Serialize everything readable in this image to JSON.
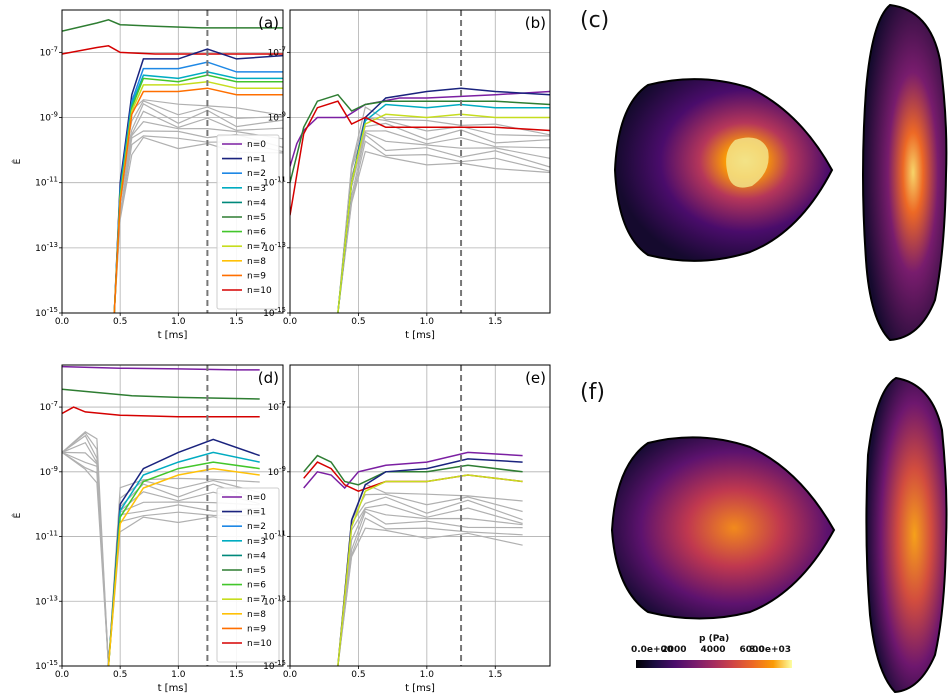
{
  "panels": {
    "c": "(c)",
    "f": "(f)"
  },
  "colorbar": {
    "title": "p (Pa)",
    "ticks": [
      "0.0e+00",
      "2000",
      "4000",
      "6000",
      "8.0e+03"
    ],
    "colors": [
      "#000004",
      "#1b0c41",
      "#4a0c6b",
      "#781c6d",
      "#a52c60",
      "#cf4446",
      "#ed6925",
      "#fb9b06",
      "#f7d13d",
      "#fcffa4"
    ]
  },
  "series_colors": {
    "n=0": "#7b1fa2",
    "n=1": "#1a237e",
    "n=2": "#1e88e5",
    "n=3": "#00acc1",
    "n=4": "#00897b",
    "n=5": "#2e7d32",
    "n=6": "#43c62b",
    "n=7": "#c6dd1e",
    "n=8": "#ffc107",
    "n=9": "#ff6f00",
    "n=10": "#d50000",
    "higher-n": "#b0b0b0"
  },
  "chart_data": [
    {
      "type": "line",
      "panel_label": "(a)",
      "xlabel": "t [ms]",
      "ylabel": "Ê",
      "xlim": [
        0,
        1.9
      ],
      "ylim_log10": [
        -15,
        -5.7
      ],
      "yscale": "log",
      "xticks": [
        "0.0",
        "0.5",
        "1.0",
        "1.5"
      ],
      "yticks": [
        "10^-15",
        "10^-13",
        "10^-11",
        "10^-9",
        "10^-7"
      ],
      "vline_x": 1.25,
      "grid": true,
      "legend": "lower-right",
      "legend_entries": [
        "n=0",
        "n=1",
        "n=2",
        "n=3",
        "n=4",
        "n=5",
        "n=6",
        "n=7",
        "n=8",
        "n=9",
        "n=10"
      ],
      "series": [
        {
          "name": "n=5",
          "x": [
            0,
            0.3,
            0.4,
            0.5,
            0.8,
            1.2,
            1.5,
            1.9
          ],
          "log10_y": [
            -6.35,
            -6.1,
            -6.0,
            -6.15,
            -6.2,
            -6.25,
            -6.25,
            -6.25
          ]
        },
        {
          "name": "n=10",
          "x": [
            0,
            0.3,
            0.4,
            0.5,
            0.8,
            1.2,
            1.5,
            1.9
          ],
          "log10_y": [
            -7.05,
            -6.85,
            -6.8,
            -7.0,
            -7.05,
            -7.05,
            -7.05,
            -7.05
          ]
        },
        {
          "name": "n=1",
          "x": [
            0.45,
            0.5,
            0.6,
            0.7,
            1.0,
            1.25,
            1.5,
            1.9
          ],
          "log10_y": [
            -15,
            -11,
            -8.3,
            -7.2,
            -7.2,
            -6.9,
            -7.2,
            -7.1
          ]
        },
        {
          "name": "n=2",
          "x": [
            0.45,
            0.5,
            0.6,
            0.7,
            1.0,
            1.25,
            1.5,
            1.9
          ],
          "log10_y": [
            -15,
            -11.2,
            -8.5,
            -7.5,
            -7.5,
            -7.3,
            -7.6,
            -7.6
          ]
        },
        {
          "name": "n=3",
          "x": [
            0.45,
            0.5,
            0.6,
            0.7,
            1.0,
            1.25,
            1.5,
            1.9
          ],
          "log10_y": [
            -15,
            -11.3,
            -8.6,
            -7.7,
            -7.8,
            -7.6,
            -7.8,
            -7.8
          ]
        },
        {
          "name": "n=6",
          "x": [
            0.45,
            0.5,
            0.6,
            0.7,
            1.0,
            1.25,
            1.5,
            1.9
          ],
          "log10_y": [
            -15,
            -11.4,
            -8.7,
            -7.8,
            -7.9,
            -7.7,
            -7.9,
            -7.9
          ]
        },
        {
          "name": "n=7",
          "x": [
            0.45,
            0.5,
            0.6,
            0.7,
            1.0,
            1.25,
            1.5,
            1.9
          ],
          "log10_y": [
            -15,
            -11.5,
            -8.8,
            -8.0,
            -8.0,
            -7.9,
            -8.1,
            -8.1
          ]
        },
        {
          "name": "n=9",
          "x": [
            0.45,
            0.5,
            0.6,
            0.7,
            1.0,
            1.25,
            1.5,
            1.9
          ],
          "log10_y": [
            -15,
            -11.6,
            -8.9,
            -8.2,
            -8.2,
            -8.1,
            -8.3,
            -8.3
          ]
        },
        {
          "name": "higher-n",
          "x": [
            0.45,
            0.5,
            0.6,
            0.7,
            1.0,
            1.25,
            1.5,
            1.9
          ],
          "log10_y": [
            -15,
            -11.5,
            -9.5,
            -9.0,
            -9.3,
            -9.2,
            -9.4,
            -9.5
          ]
        }
      ]
    },
    {
      "type": "line",
      "panel_label": "(b)",
      "xlabel": "t [ms]",
      "ylabel": "",
      "xlim": [
        0,
        1.9
      ],
      "ylim_log10": [
        -15,
        -5.7
      ],
      "yscale": "log",
      "xticks": [
        "0.0",
        "0.5",
        "1.0",
        "1.5"
      ],
      "yticks": [
        "10^-15",
        "10^-13",
        "10^-11",
        "10^-9",
        "10^-7"
      ],
      "vline_x": 1.25,
      "grid": true,
      "series": [
        {
          "name": "n=0",
          "x": [
            0,
            0.05,
            0.1,
            0.2,
            0.4,
            0.55,
            0.8,
            1.0,
            1.5,
            1.9
          ],
          "log10_y": [
            -10.5,
            -9.8,
            -9.4,
            -9.0,
            -9.0,
            -8.6,
            -8.4,
            -8.4,
            -8.3,
            -8.2
          ]
        },
        {
          "name": "n=1",
          "x": [
            0.35,
            0.45,
            0.55,
            0.7,
            1.0,
            1.25,
            1.5,
            1.9
          ],
          "log10_y": [
            -15,
            -11,
            -9.0,
            -8.4,
            -8.2,
            -8.1,
            -8.2,
            -8.3
          ]
        },
        {
          "name": "n=5",
          "x": [
            0,
            0.1,
            0.2,
            0.35,
            0.45,
            0.55,
            0.7,
            1.0,
            1.5,
            1.9
          ],
          "log10_y": [
            -11,
            -9.3,
            -8.5,
            -8.3,
            -8.8,
            -8.6,
            -8.5,
            -8.5,
            -8.5,
            -8.6
          ]
        },
        {
          "name": "n=3",
          "x": [
            0.35,
            0.45,
            0.55,
            0.7,
            1.0,
            1.25,
            1.5,
            1.9
          ],
          "log10_y": [
            -15,
            -11,
            -9.1,
            -8.6,
            -8.7,
            -8.6,
            -8.7,
            -8.7
          ]
        },
        {
          "name": "n=7",
          "x": [
            0.35,
            0.45,
            0.55,
            0.7,
            1.0,
            1.25,
            1.5,
            1.9
          ],
          "log10_y": [
            -15,
            -11,
            -9.2,
            -8.9,
            -9.0,
            -8.9,
            -9.0,
            -9.0
          ]
        },
        {
          "name": "n=10",
          "x": [
            0,
            0.1,
            0.2,
            0.35,
            0.45,
            0.55,
            0.7,
            1.0,
            1.5,
            1.9
          ],
          "log10_y": [
            -12,
            -9.5,
            -8.7,
            -8.5,
            -9.2,
            -9.0,
            -9.3,
            -9.3,
            -9.3,
            -9.4
          ]
        },
        {
          "name": "higher-n",
          "x": [
            0.35,
            0.45,
            0.55,
            0.7,
            1.0,
            1.25,
            1.5,
            1.9
          ],
          "log10_y": [
            -15,
            -11,
            -9.4,
            -9.6,
            -9.8,
            -9.8,
            -9.9,
            -10.1
          ]
        }
      ]
    },
    {
      "type": "line",
      "panel_label": "(d)",
      "xlabel": "t [ms]",
      "ylabel": "Ê",
      "xlim": [
        0,
        1.9
      ],
      "ylim_log10": [
        -15,
        -5.7
      ],
      "yscale": "log",
      "xticks": [
        "0.0",
        "0.5",
        "1.0",
        "1.5"
      ],
      "yticks": [
        "10^-15",
        "10^-13",
        "10^-11",
        "10^-9",
        "10^-7"
      ],
      "vline_x": 1.25,
      "grid": true,
      "legend": "lower-right",
      "legend_entries": [
        "n=0",
        "n=1",
        "n=2",
        "n=3",
        "n=4",
        "n=5",
        "n=6",
        "n=7",
        "n=8",
        "n=9",
        "n=10"
      ],
      "series": [
        {
          "name": "n=0",
          "x": [
            0,
            0.5,
            1.0,
            1.5,
            1.7
          ],
          "log10_y": [
            -5.75,
            -5.8,
            -5.82,
            -5.85,
            -5.85
          ]
        },
        {
          "name": "n=5",
          "x": [
            0,
            0.3,
            0.6,
            1.0,
            1.7
          ],
          "log10_y": [
            -6.45,
            -6.55,
            -6.65,
            -6.7,
            -6.75
          ]
        },
        {
          "name": "n=10",
          "x": [
            0,
            0.1,
            0.2,
            0.5,
            1.0,
            1.7
          ],
          "log10_y": [
            -7.2,
            -7.0,
            -7.15,
            -7.25,
            -7.3,
            -7.3
          ]
        },
        {
          "name": "n=1",
          "x": [
            0.4,
            0.5,
            0.7,
            1.0,
            1.3,
            1.7
          ],
          "log10_y": [
            -15,
            -10,
            -8.9,
            -8.4,
            -8.0,
            -8.5
          ]
        },
        {
          "name": "n=3",
          "x": [
            0.4,
            0.5,
            0.7,
            1.0,
            1.3,
            1.7
          ],
          "log10_y": [
            -15,
            -10.2,
            -9.1,
            -8.7,
            -8.4,
            -8.7
          ]
        },
        {
          "name": "n=6",
          "x": [
            0.4,
            0.5,
            0.7,
            1.0,
            1.3,
            1.7
          ],
          "log10_y": [
            -15,
            -10.4,
            -9.3,
            -8.9,
            -8.7,
            -8.9
          ]
        },
        {
          "name": "n=8",
          "x": [
            0.4,
            0.5,
            0.7,
            1.0,
            1.3,
            1.7
          ],
          "log10_y": [
            -15,
            -10.6,
            -9.5,
            -9.1,
            -8.9,
            -9.1
          ]
        },
        {
          "name": "higher-n",
          "x": [
            0,
            0.2,
            0.3,
            0.4,
            0.5,
            0.7,
            1.0,
            1.3,
            1.7
          ],
          "log10_y": [
            -8.4,
            -8.3,
            -8.7,
            -15,
            -10.2,
            -9.8,
            -9.9,
            -9.8,
            -10.0
          ]
        }
      ]
    },
    {
      "type": "line",
      "panel_label": "(e)",
      "xlabel": "t [ms]",
      "ylabel": "",
      "xlim": [
        0,
        1.9
      ],
      "ylim_log10": [
        -15,
        -5.7
      ],
      "yscale": "log",
      "xticks": [
        "0.0",
        "0.5",
        "1.0",
        "1.5"
      ],
      "yticks": [
        "10^-15",
        "10^-13",
        "10^-11",
        "10^-9",
        "10^-7"
      ],
      "vline_x": 1.25,
      "grid": true,
      "series": [
        {
          "name": "n=0",
          "x": [
            0.1,
            0.2,
            0.3,
            0.4,
            0.5,
            0.7,
            1.0,
            1.3,
            1.7
          ],
          "log10_y": [
            -9.5,
            -9.0,
            -9.1,
            -9.5,
            -9.0,
            -8.8,
            -8.7,
            -8.4,
            -8.5
          ]
        },
        {
          "name": "n=5",
          "x": [
            0.1,
            0.2,
            0.3,
            0.4,
            0.5,
            0.7,
            1.0,
            1.3,
            1.7
          ],
          "log10_y": [
            -9.0,
            -8.5,
            -8.7,
            -9.3,
            -9.4,
            -9.0,
            -9.0,
            -8.8,
            -9.0
          ]
        },
        {
          "name": "n=10",
          "x": [
            0.1,
            0.2,
            0.3,
            0.4,
            0.5,
            0.7,
            1.0,
            1.3,
            1.7
          ],
          "log10_y": [
            -9.2,
            -8.7,
            -8.9,
            -9.4,
            -9.6,
            -9.3,
            -9.3,
            -9.1,
            -9.3
          ]
        },
        {
          "name": "n=1",
          "x": [
            0.35,
            0.45,
            0.55,
            0.7,
            1.0,
            1.3,
            1.7
          ],
          "log10_y": [
            -15,
            -10.5,
            -9.4,
            -9.0,
            -8.9,
            -8.6,
            -8.7
          ]
        },
        {
          "name": "n=7",
          "x": [
            0.35,
            0.45,
            0.55,
            0.7,
            1.0,
            1.3,
            1.7
          ],
          "log10_y": [
            -15,
            -10.7,
            -9.6,
            -9.3,
            -9.3,
            -9.1,
            -9.3
          ]
        },
        {
          "name": "higher-n",
          "x": [
            0.35,
            0.45,
            0.55,
            0.7,
            1.0,
            1.3,
            1.7
          ],
          "log10_y": [
            -15,
            -11,
            -10.1,
            -10.2,
            -10.4,
            -10.3,
            -10.6
          ]
        }
      ]
    }
  ]
}
